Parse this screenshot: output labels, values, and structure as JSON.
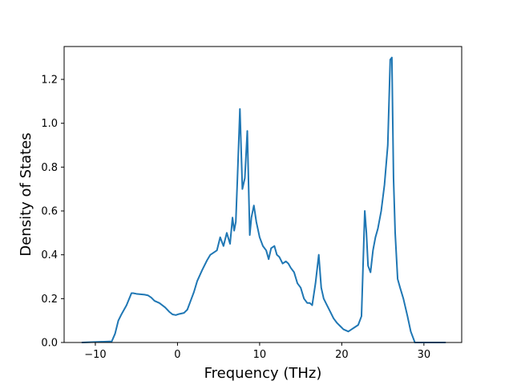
{
  "chart_data": {
    "type": "line",
    "title": "",
    "xlabel": "Frequency (THz)",
    "ylabel": "Density of States",
    "xlim": [
      -13.8,
      34.6
    ],
    "ylim": [
      0.0,
      1.35
    ],
    "xticks": [
      -10,
      0,
      10,
      20,
      30
    ],
    "yticks": [
      0.0,
      0.2,
      0.4,
      0.6,
      0.8,
      1.0,
      1.2
    ],
    "xtick_labels": [
      "−10",
      "0",
      "10",
      "20",
      "30"
    ],
    "ytick_labels": [
      "0.0",
      "0.2",
      "0.4",
      "0.6",
      "0.8",
      "1.0",
      "1.2"
    ],
    "grid": false,
    "line_color": "#1f77b4",
    "series": [
      {
        "x": [
          -11.6,
          -8.0,
          -7.6,
          -7.2,
          -6.8,
          -6.2,
          -5.6,
          -5.4,
          -5.0,
          -4.5,
          -4.0,
          -3.6,
          -3.2,
          -2.8,
          -2.2,
          -1.5,
          -1.0,
          -0.6,
          -0.2,
          0.2,
          0.8,
          1.2,
          1.6,
          2.0,
          2.4,
          3.0,
          3.6,
          4.0,
          4.4,
          4.8,
          5.2,
          5.6,
          6.0,
          6.4,
          6.7,
          6.9,
          7.1,
          7.3,
          7.6,
          7.9,
          8.2,
          8.5,
          8.8,
          9.0,
          9.3,
          9.6,
          10.0,
          10.4,
          10.8,
          11.1,
          11.4,
          11.8,
          12.1,
          12.4,
          12.8,
          13.2,
          13.5,
          13.8,
          14.2,
          14.6,
          15.0,
          15.4,
          15.8,
          16.1,
          16.4,
          16.8,
          17.2,
          17.5,
          17.8,
          18.2,
          18.6,
          19.0,
          19.4,
          19.8,
          20.2,
          20.8,
          21.2,
          21.6,
          22.0,
          22.4,
          22.8,
          23.0,
          23.2,
          23.5,
          23.8,
          24.1,
          24.4,
          24.8,
          25.2,
          25.6,
          25.9,
          26.1,
          26.3,
          26.5,
          26.8,
          27.1,
          27.5,
          28.0,
          28.4,
          28.9,
          29.2,
          29.6,
          32.6
        ],
        "y": [
          0.0,
          0.005,
          0.04,
          0.1,
          0.13,
          0.17,
          0.225,
          0.225,
          0.222,
          0.22,
          0.218,
          0.215,
          0.205,
          0.19,
          0.18,
          0.16,
          0.14,
          0.128,
          0.125,
          0.13,
          0.135,
          0.15,
          0.19,
          0.23,
          0.28,
          0.33,
          0.375,
          0.4,
          0.41,
          0.42,
          0.48,
          0.44,
          0.5,
          0.45,
          0.57,
          0.51,
          0.55,
          0.75,
          1.065,
          0.7,
          0.75,
          0.965,
          0.49,
          0.57,
          0.625,
          0.55,
          0.48,
          0.44,
          0.42,
          0.38,
          0.43,
          0.44,
          0.4,
          0.39,
          0.36,
          0.37,
          0.36,
          0.34,
          0.32,
          0.27,
          0.25,
          0.2,
          0.18,
          0.18,
          0.17,
          0.27,
          0.4,
          0.25,
          0.2,
          0.17,
          0.14,
          0.11,
          0.09,
          0.075,
          0.06,
          0.05,
          0.06,
          0.07,
          0.08,
          0.12,
          0.6,
          0.5,
          0.35,
          0.32,
          0.42,
          0.48,
          0.52,
          0.6,
          0.72,
          0.9,
          1.29,
          1.3,
          0.75,
          0.5,
          0.29,
          0.25,
          0.2,
          0.12,
          0.05,
          0.0,
          0.0,
          0.0,
          0.0
        ]
      }
    ]
  }
}
